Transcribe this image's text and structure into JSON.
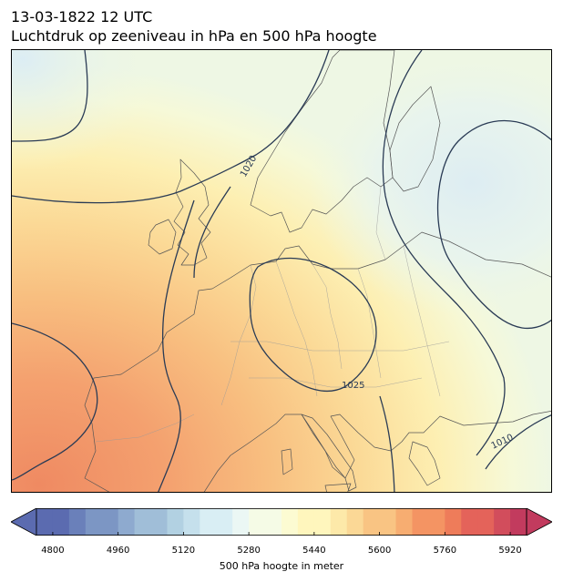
{
  "header": {
    "datetime": "13-03-1822 12 UTC",
    "subtitle": "Luchtdruk op zeeniveau in hPa en 500 hPa hoogte"
  },
  "map": {
    "isobar_labels": [
      "1020",
      "1025",
      "1010"
    ]
  },
  "colorbar": {
    "label": "500 hPa hoogte in meter",
    "ticks": [
      "4800",
      "4960",
      "5120",
      "5280",
      "5440",
      "5600",
      "5760",
      "5920"
    ],
    "min": 4760,
    "max": 5960,
    "step": 40,
    "colors": [
      "#5b6bb0",
      "#6a80ba",
      "#7c96c4",
      "#8eaacf",
      "#a0bed8",
      "#b2d1e2",
      "#c5e0ec",
      "#d9eef4",
      "#ebf7f4",
      "#f5fbe6",
      "#fcfbd2",
      "#fff6bd",
      "#fde9a9",
      "#fbd896",
      "#f9c483",
      "#f7ad71",
      "#f49463",
      "#ee7c5a",
      "#e4635a",
      "#d24d5c",
      "#c23b5e"
    ]
  }
}
